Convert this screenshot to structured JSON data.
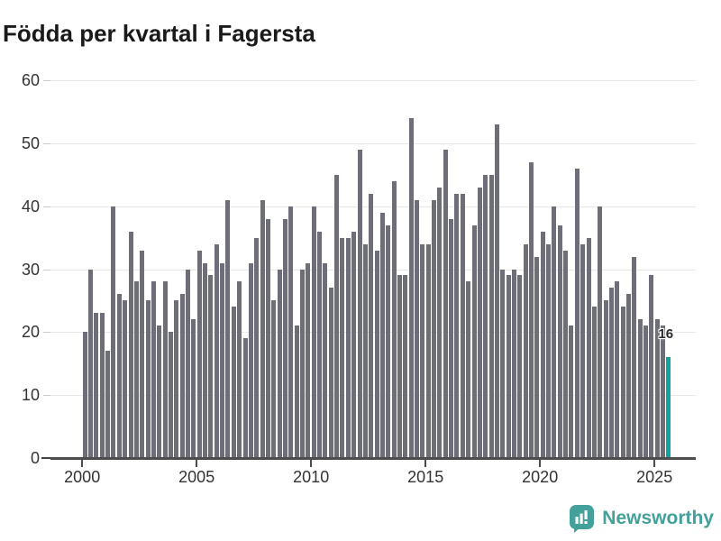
{
  "title": "Födda per kvartal i Fagersta",
  "branding": {
    "logo_text": "Newsworthy"
  },
  "chart_data": {
    "type": "bar",
    "title": "Födda per kvartal i Fagersta",
    "frequency": "quarterly",
    "x_start": "2000 Q1",
    "x_end": "2025 Q3",
    "values": [
      20,
      30,
      23,
      23,
      17,
      40,
      26,
      25,
      36,
      28,
      33,
      25,
      28,
      21,
      28,
      20,
      25,
      26,
      30,
      22,
      33,
      31,
      29,
      34,
      31,
      41,
      24,
      28,
      19,
      31,
      35,
      41,
      38,
      25,
      30,
      38,
      40,
      21,
      30,
      31,
      40,
      36,
      31,
      27,
      45,
      35,
      35,
      36,
      49,
      34,
      42,
      33,
      39,
      37,
      44,
      29,
      29,
      54,
      41,
      34,
      34,
      41,
      43,
      49,
      38,
      42,
      42,
      28,
      37,
      43,
      45,
      45,
      53,
      30,
      29,
      30,
      29,
      34,
      47,
      32,
      36,
      34,
      40,
      37,
      33,
      21,
      46,
      34,
      35,
      24,
      40,
      25,
      27,
      28,
      24,
      26,
      32,
      22,
      21,
      29,
      22,
      21,
      16
    ],
    "start_year": 2000,
    "highlight_last": true,
    "highlight_label": "16",
    "y_ticks": [
      0,
      10,
      20,
      30,
      40,
      50,
      60
    ],
    "ylim": [
      0,
      60
    ],
    "x_ticks": [
      "2000",
      "2005",
      "2010",
      "2015",
      "2020",
      "2025"
    ],
    "grid": "horizontal-major-only",
    "legend": "none",
    "colors": {
      "bar": "#6e6e78",
      "highlight": "#11a39c",
      "grid": "#e7e7e7",
      "axis": "#4d4d4d",
      "tick_text": "#333333",
      "title_text": "#1a1a1a",
      "logo": "#43a09a"
    }
  }
}
